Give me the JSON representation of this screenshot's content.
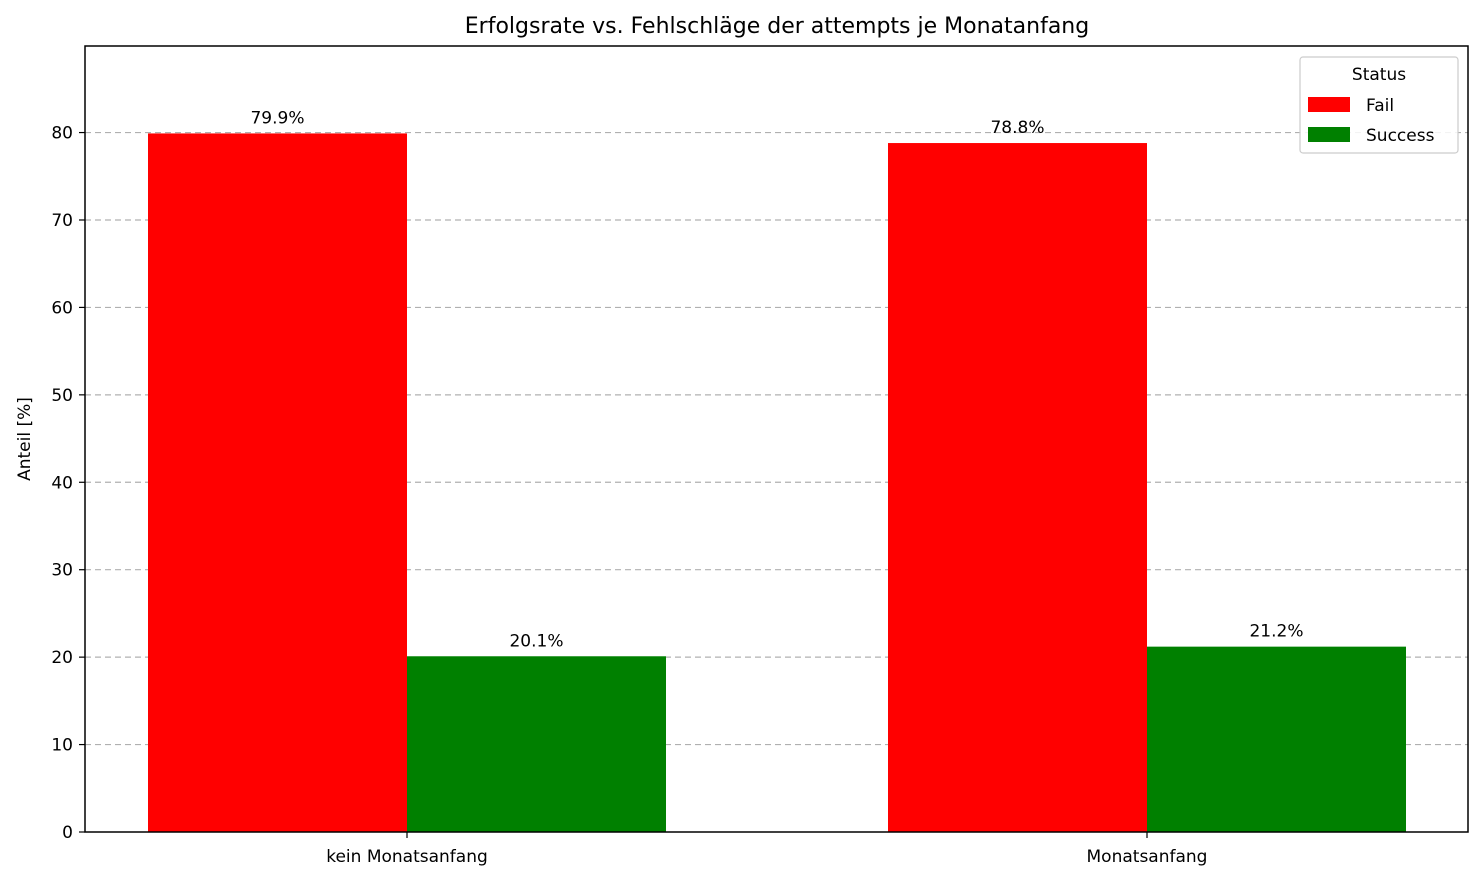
{
  "chart_data": {
    "type": "bar",
    "title": "Erfolgsrate vs. Fehlschläge der attempts je Monatanfang",
    "xlabel": "",
    "ylabel": "Anteil [%]",
    "categories": [
      "kein Monatsanfang",
      "Monatsanfang"
    ],
    "series": [
      {
        "name": "Fail",
        "color": "#ff0000",
        "values": [
          79.9,
          78.8
        ],
        "labels": [
          "79.9%",
          "78.8%"
        ]
      },
      {
        "name": "Success",
        "color": "#008000",
        "values": [
          20.1,
          21.2
        ],
        "labels": [
          "20.1%",
          "21.2%"
        ]
      }
    ],
    "ylim": [
      0,
      89.9
    ],
    "yticks": [
      0,
      10,
      20,
      30,
      40,
      50,
      60,
      70,
      80
    ],
    "grid": "y-dashed",
    "legend": {
      "title": "Status",
      "placement": "top-right"
    }
  }
}
